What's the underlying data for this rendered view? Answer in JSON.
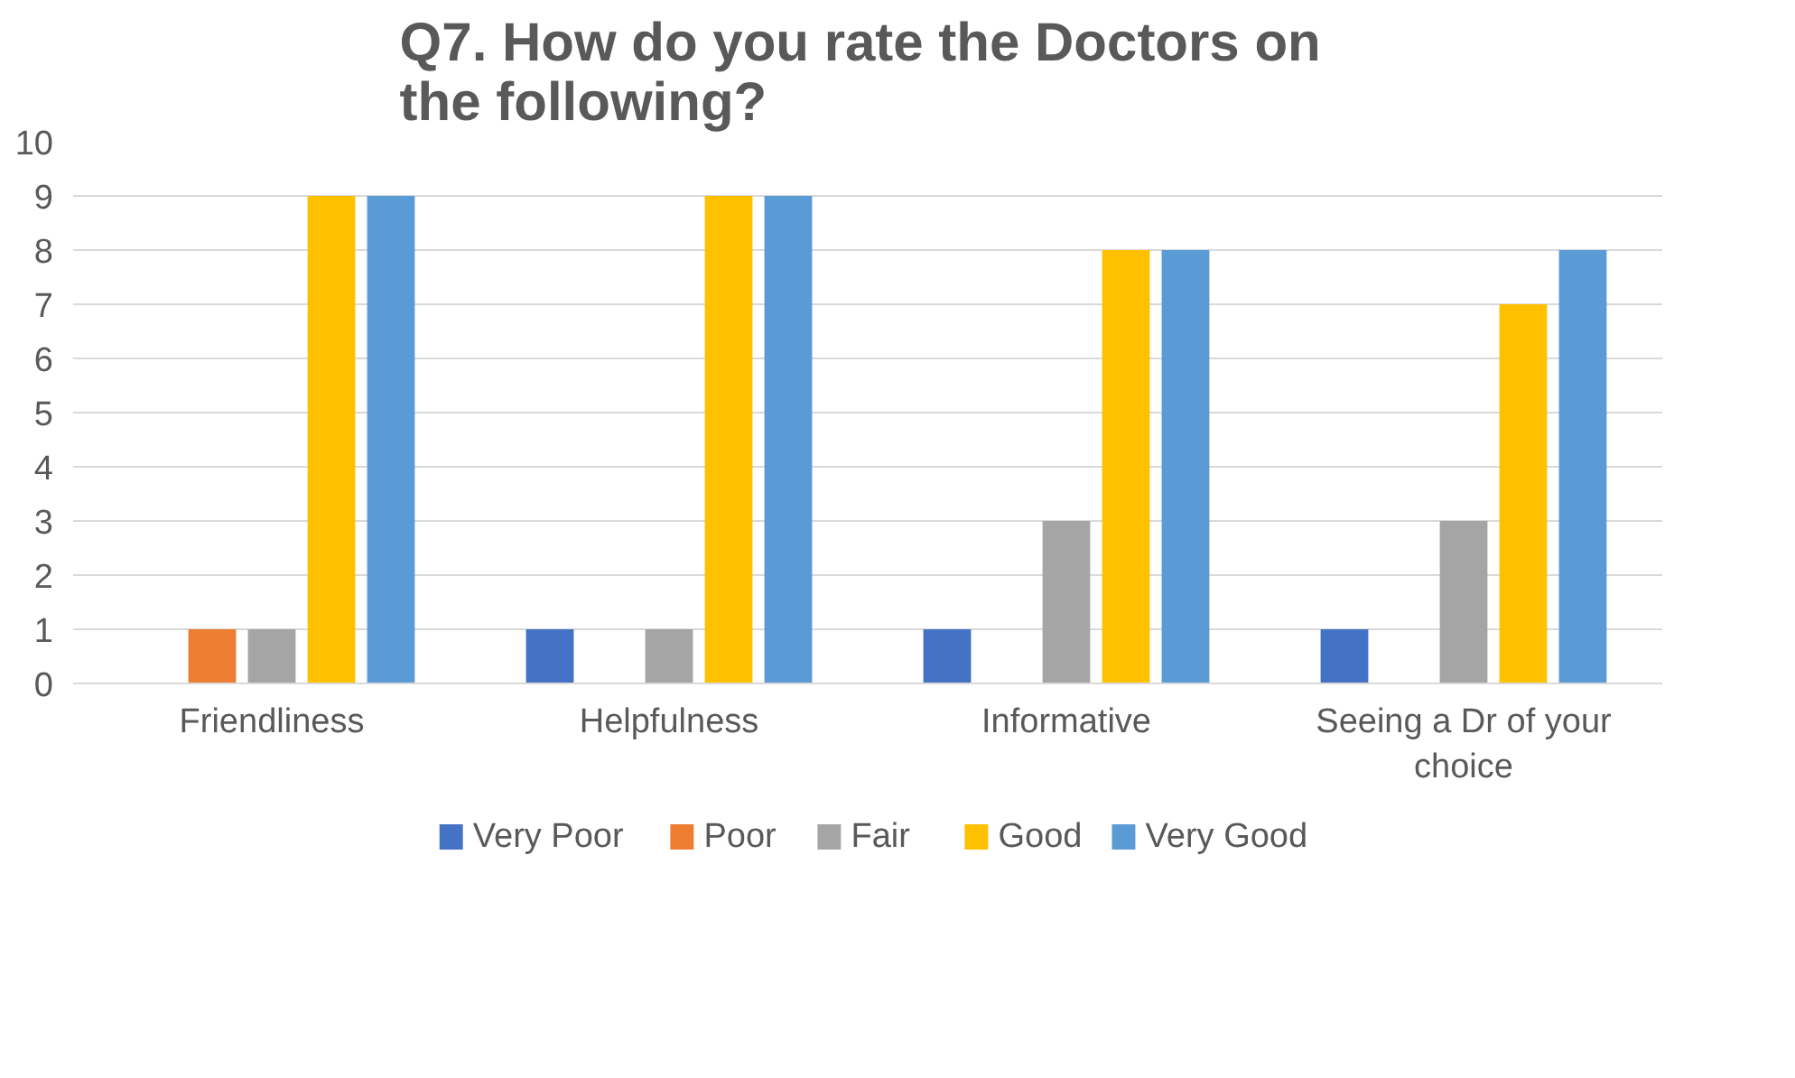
{
  "chart_data": {
    "type": "bar",
    "title": "Q7. How do you rate the Doctors  on the following?",
    "categories": [
      "Friendliness",
      "Helpfulness",
      "Informative",
      "Seeing a Dr of your choice"
    ],
    "series": [
      {
        "name": "Very Poor",
        "color": "#4472c4",
        "values": [
          0,
          1,
          1,
          1
        ]
      },
      {
        "name": "Poor",
        "color": "#ed7d31",
        "values": [
          1,
          0,
          0,
          0
        ]
      },
      {
        "name": "Fair",
        "color": "#a5a5a5",
        "values": [
          1,
          1,
          3,
          3
        ]
      },
      {
        "name": "Good",
        "color": "#ffc000",
        "values": [
          9,
          9,
          8,
          7
        ]
      },
      {
        "name": "Very Good",
        "color": "#5b9bd5",
        "values": [
          9,
          9,
          8,
          8
        ]
      }
    ],
    "ylim": [
      0,
      10
    ],
    "yticks": [
      0,
      1,
      2,
      3,
      4,
      5,
      6,
      7,
      8,
      9,
      10
    ],
    "grid": "y",
    "legend": "bottom"
  }
}
